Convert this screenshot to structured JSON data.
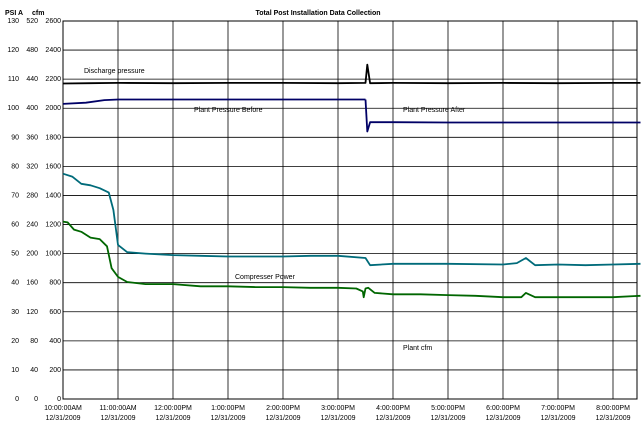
{
  "chart_data": {
    "type": "line",
    "title": "Total Post Installation Data Collection",
    "axis_headers": {
      "psi": "PSI A",
      "cfm": "cfm"
    },
    "y_axes": {
      "psi": {
        "ticks": [
          "130",
          "120",
          "110",
          "100",
          "90",
          "80",
          "70",
          "60",
          "50",
          "40",
          "30",
          "20",
          "10",
          "0"
        ],
        "ylim": [
          0,
          130
        ]
      },
      "kw": {
        "ticks": [
          "520",
          "480",
          "440",
          "400",
          "360",
          "320",
          "280",
          "240",
          "200",
          "160",
          "120",
          "80",
          "40",
          "0"
        ],
        "ylim": [
          0,
          520
        ]
      },
      "cfm": {
        "ticks": [
          "2600",
          "2400",
          "2200",
          "2000",
          "1800",
          "1600",
          "1400",
          "1200",
          "1000",
          "800",
          "600",
          "400",
          "200",
          "0"
        ],
        "ylim": [
          0,
          2600
        ]
      }
    },
    "x_axis": {
      "ticks": [
        {
          "time": "10:00:00AM",
          "date": "12/31/2009"
        },
        {
          "time": "11:00:00AM",
          "date": "12/31/2009"
        },
        {
          "time": "12:00:00PM",
          "date": "12/31/2009"
        },
        {
          "time": "1:00:00PM",
          "date": "12/31/2009"
        },
        {
          "time": "2:00:00PM",
          "date": "12/31/2009"
        },
        {
          "time": "3:00:00PM",
          "date": "12/31/2009"
        },
        {
          "time": "4:00:00PM",
          "date": "12/31/2009"
        },
        {
          "time": "5:00:00PM",
          "date": "12/31/2009"
        },
        {
          "time": "6:00:00PM",
          "date": "12/31/2009"
        },
        {
          "time": "7:00:00PM",
          "date": "12/31/2009"
        },
        {
          "time": "8:00:00PM",
          "date": "12/31/2009"
        }
      ],
      "xlim": [
        "12/31/2009 10:00:00AM",
        "12/31/2009 8:30:00PM"
      ]
    },
    "grid": true,
    "series": [
      {
        "name": "Discharge pressure",
        "color": "#000000",
        "x": [
          "10:00",
          "10:30",
          "11:00",
          "12:00",
          "1:00",
          "2:00",
          "3:00",
          "3:30",
          "3:32",
          "3:35",
          "4:00",
          "5:00",
          "6:00",
          "7:00",
          "8:00",
          "8:30"
        ],
        "y": [
          108.5,
          108.6,
          108.7,
          108.6,
          108.7,
          108.7,
          108.6,
          108.7,
          115.0,
          108.6,
          108.7,
          108.6,
          108.7,
          108.6,
          108.7,
          108.7
        ]
      },
      {
        "name": "Plant Pressure Before",
        "color": "#000066",
        "x": [
          "10:00",
          "10:25",
          "10:45",
          "11:00",
          "12:00",
          "1:00",
          "2:00",
          "3:00",
          "3:30"
        ],
        "y": [
          101.5,
          101.9,
          102.8,
          103.0,
          103.0,
          103.0,
          103.0,
          103.0,
          103.0
        ]
      },
      {
        "name": "Plant Pressure After",
        "color": "#000066",
        "x": [
          "3:30",
          "3:32",
          "3:35",
          "4:00",
          "5:00",
          "6:00",
          "7:00",
          "8:00",
          "8:30"
        ],
        "y": [
          103.0,
          92.0,
          95.2,
          95.2,
          95.1,
          95.1,
          95.1,
          95.1,
          95.1
        ]
      },
      {
        "name": "Compresser Power",
        "color": "#006600",
        "x": [
          "10:00",
          "10:05",
          "10:12",
          "10:20",
          "10:30",
          "10:40",
          "10:48",
          "10:53",
          "11:00",
          "11:10",
          "11:30",
          "12:00",
          "12:30",
          "1:00",
          "1:30",
          "2:00",
          "2:30",
          "3:00",
          "3:20",
          "3:27",
          "3:28",
          "3:30",
          "3:33",
          "3:40",
          "4:00",
          "4:30",
          "5:00",
          "5:30",
          "6:00",
          "6:20",
          "6:25",
          "6:35",
          "7:00",
          "7:30",
          "8:00",
          "8:30"
        ],
        "y": [
          244,
          243,
          233,
          230,
          222,
          220,
          210,
          180,
          168,
          161,
          158,
          158,
          155,
          155,
          154,
          154,
          153,
          153,
          152,
          148,
          140,
          152,
          153,
          146,
          144,
          144,
          143,
          142,
          140,
          140,
          146,
          140,
          140,
          140,
          140,
          142
        ]
      },
      {
        "name": "Plant cfm",
        "color": "#006b7a",
        "x": [
          "10:00",
          "10:10",
          "10:20",
          "10:30",
          "10:40",
          "10:50",
          "10:55",
          "11:00",
          "11:10",
          "11:30",
          "12:00",
          "12:30",
          "1:00",
          "1:30",
          "2:00",
          "2:30",
          "3:00",
          "3:30",
          "3:35",
          "4:00",
          "5:00",
          "6:00",
          "6:15",
          "6:25",
          "6:35",
          "7:00",
          "7:30",
          "8:00",
          "8:30"
        ],
        "y": [
          1550,
          1530,
          1480,
          1470,
          1450,
          1420,
          1300,
          1060,
          1010,
          1000,
          990,
          985,
          980,
          980,
          980,
          985,
          985,
          970,
          920,
          930,
          930,
          925,
          935,
          970,
          920,
          925,
          920,
          925,
          930
        ]
      }
    ],
    "annotations": [
      {
        "text": "Discharge pressure",
        "series": "Discharge pressure"
      },
      {
        "text": "Plant Pressure Before",
        "series": "Plant Pressure Before"
      },
      {
        "text": "Plant Pressure After",
        "series": "Plant Pressure After"
      },
      {
        "text": "Compresser Power",
        "series": "Compresser Power"
      },
      {
        "text": "Plant cfm",
        "series": "Plant cfm"
      }
    ]
  }
}
